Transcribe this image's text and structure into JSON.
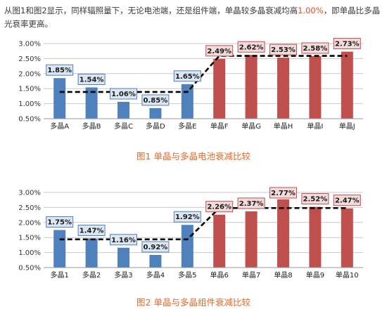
{
  "intro": {
    "text_before": "从图1和图2显示，同样辐照量下，无论电池端，还是组件端，单晶较多晶衰减均高",
    "highlight": "1.00%",
    "text_after": "，即单晶比多晶光衰率更高。"
  },
  "captions": {
    "fig1": "图1 单晶与多晶电池衰减比较",
    "fig2": "图2 单晶与多晶组件衰减比较"
  },
  "colors": {
    "poly_bar": "#4f81bd",
    "mono_bar": "#c0504d",
    "poly_label_bg": "#dce6f2",
    "poly_label_border": "#4f81bd",
    "mono_label_bg": "#f2dcdb",
    "mono_label_border": "#c0504d",
    "avg_line": "#000000"
  },
  "chart_data": [
    {
      "type": "bar",
      "categories": [
        "多晶A",
        "多晶B",
        "多晶C",
        "多晶D",
        "多晶E",
        "单晶F",
        "单晶G",
        "单晶H",
        "单晶I",
        "单晶J"
      ],
      "values": [
        1.85,
        1.54,
        1.06,
        0.85,
        1.65,
        2.49,
        2.62,
        2.53,
        2.58,
        2.73
      ],
      "labels": [
        "1.85%",
        "1.54%",
        "1.06%",
        "0.85%",
        "1.65%",
        "2.49%",
        "2.62%",
        "2.53%",
        "2.58%",
        "2.73%"
      ],
      "groups": [
        "poly",
        "poly",
        "poly",
        "poly",
        "poly",
        "mono",
        "mono",
        "mono",
        "mono",
        "mono"
      ],
      "avg_line": [
        1.39,
        1.39,
        1.39,
        1.39,
        1.39,
        2.59,
        2.59,
        2.59,
        2.59,
        2.59
      ],
      "yticks": [
        0.5,
        1.0,
        1.5,
        2.0,
        2.5,
        3.0
      ],
      "ytick_labels": [
        "0.50%",
        "1.00%",
        "1.50%",
        "2.00%",
        "2.50%",
        "3.00%"
      ],
      "ylim": [
        0.5,
        3.0
      ],
      "grid": true
    },
    {
      "type": "bar",
      "categories": [
        "多晶1",
        "多晶2",
        "多晶3",
        "多晶4",
        "多晶5",
        "单晶6",
        "单晶7",
        "单晶8",
        "单晶9",
        "单晶10"
      ],
      "values": [
        1.75,
        1.47,
        1.16,
        0.92,
        1.92,
        2.26,
        2.37,
        2.77,
        2.52,
        2.47
      ],
      "labels": [
        "1.75%",
        "1.47%",
        "1.16%",
        "0.92%",
        "1.92%",
        "2.26%",
        "2.37%",
        "2.77%",
        "2.52%",
        "2.47%"
      ],
      "groups": [
        "poly",
        "poly",
        "poly",
        "poly",
        "poly",
        "mono",
        "mono",
        "mono",
        "mono",
        "mono"
      ],
      "avg_line": [
        1.44,
        1.44,
        1.44,
        1.44,
        1.44,
        2.48,
        2.48,
        2.48,
        2.48,
        2.48
      ],
      "yticks": [
        0.5,
        1.0,
        1.5,
        2.0,
        2.5,
        3.0
      ],
      "ytick_labels": [
        "0.50%",
        "1.00%",
        "1.50%",
        "2.00%",
        "2.50%",
        "3.00%"
      ],
      "ylim": [
        0.5,
        3.0
      ],
      "grid": true
    }
  ]
}
